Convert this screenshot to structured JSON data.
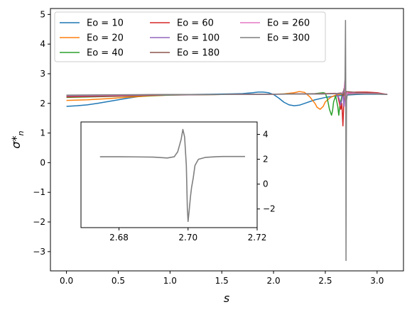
{
  "chart_data": {
    "type": "line",
    "xlabel": "s",
    "ylabel": "σ*",
    "ylabel_sub": "n",
    "xlim": [
      -0.155,
      3.255
    ],
    "ylim": [
      -3.65,
      5.2
    ],
    "xticks": [
      0.0,
      0.5,
      1.0,
      1.5,
      2.0,
      2.5,
      3.0
    ],
    "xtick_labels": [
      "0.0",
      "0.5",
      "1.0",
      "1.5",
      "2.0",
      "2.5",
      "3.0"
    ],
    "yticks": [
      -3,
      -2,
      -1,
      0,
      1,
      2,
      3,
      4,
      5
    ],
    "ytick_labels": [
      "−3",
      "−2",
      "−1",
      "0",
      "1",
      "2",
      "3",
      "4",
      "5"
    ],
    "grid": false,
    "legend": {
      "placement": "top-left",
      "columns": 3,
      "entries": [
        "Eo =  10",
        "Eo =  20",
        "Eo =  40",
        "Eo =  60",
        "Eo =  100",
        "Eo =  180",
        "Eo =  260",
        "Eo =  300"
      ]
    },
    "series": [
      {
        "name": "Eo =  10",
        "color": "#1f77b4",
        "x": [
          0.0,
          0.1,
          0.2,
          0.3,
          0.4,
          0.5,
          0.6,
          0.7,
          0.8,
          0.9,
          1.0,
          1.2,
          1.4,
          1.6,
          1.7,
          1.8,
          1.85,
          1.9,
          1.95,
          2.0,
          2.05,
          2.1,
          2.15,
          2.2,
          2.25,
          2.3,
          2.4,
          2.5,
          2.6,
          2.7,
          2.8,
          2.9,
          3.0,
          3.1
        ],
        "y": [
          1.9,
          1.92,
          1.95,
          2.0,
          2.06,
          2.12,
          2.18,
          2.23,
          2.26,
          2.28,
          2.29,
          2.3,
          2.31,
          2.32,
          2.33,
          2.36,
          2.38,
          2.38,
          2.36,
          2.3,
          2.18,
          2.04,
          1.95,
          1.92,
          1.94,
          2.0,
          2.12,
          2.2,
          2.25,
          2.28,
          2.3,
          2.31,
          2.31,
          2.3
        ]
      },
      {
        "name": "Eo =  20",
        "color": "#ff7f0e",
        "x": [
          0.0,
          0.2,
          0.4,
          0.6,
          0.8,
          1.0,
          1.5,
          2.0,
          2.1,
          2.2,
          2.25,
          2.3,
          2.35,
          2.4,
          2.42,
          2.45,
          2.48,
          2.5,
          2.55,
          2.6,
          2.7,
          2.8,
          2.9,
          3.0,
          3.1
        ],
        "y": [
          2.1,
          2.12,
          2.16,
          2.21,
          2.25,
          2.28,
          2.3,
          2.31,
          2.32,
          2.36,
          2.4,
          2.37,
          2.22,
          2.0,
          1.87,
          1.8,
          1.9,
          2.05,
          2.2,
          2.28,
          2.33,
          2.35,
          2.34,
          2.32,
          2.3
        ]
      },
      {
        "name": "Eo =  40",
        "color": "#2ca02c",
        "x": [
          0.0,
          0.5,
          1.0,
          1.5,
          2.0,
          2.4,
          2.48,
          2.5,
          2.52,
          2.54,
          2.56,
          2.57,
          2.58,
          2.6,
          2.62,
          2.63,
          2.64,
          2.66,
          2.7,
          2.8,
          2.9,
          3.0,
          3.1
        ],
        "y": [
          2.2,
          2.24,
          2.28,
          2.3,
          2.31,
          2.33,
          2.36,
          2.34,
          2.15,
          1.8,
          1.6,
          1.75,
          2.05,
          2.25,
          1.9,
          1.6,
          1.9,
          2.25,
          2.32,
          2.36,
          2.35,
          2.33,
          2.3
        ]
      },
      {
        "name": "Eo =  60",
        "color": "#d62728",
        "x": [
          0.0,
          0.5,
          1.0,
          1.5,
          2.0,
          2.5,
          2.6,
          2.62,
          2.64,
          2.65,
          2.66,
          2.67,
          2.68,
          2.7,
          2.8,
          2.9,
          3.0,
          3.1
        ],
        "y": [
          2.22,
          2.25,
          2.29,
          2.3,
          2.31,
          2.33,
          2.34,
          2.25,
          1.95,
          1.8,
          2.0,
          1.24,
          2.1,
          2.35,
          2.38,
          2.38,
          2.36,
          2.3
        ]
      },
      {
        "name": "Eo =  100",
        "color": "#9467bd",
        "x": [
          0.0,
          0.5,
          1.0,
          1.5,
          2.0,
          2.5,
          2.6,
          2.63,
          2.65,
          2.66,
          2.67,
          2.68,
          2.69,
          2.7,
          2.8,
          3.0,
          3.1
        ],
        "y": [
          2.25,
          2.27,
          2.29,
          2.3,
          2.31,
          2.32,
          2.33,
          2.2,
          1.95,
          2.1,
          2.4,
          1.9,
          2.45,
          2.32,
          2.36,
          2.34,
          2.3
        ]
      },
      {
        "name": "Eo =  180",
        "color": "#8c564b",
        "x": [
          0.0,
          0.5,
          1.0,
          1.5,
          2.0,
          2.5,
          2.6,
          2.65,
          2.67,
          2.68,
          2.69,
          2.7,
          2.8,
          3.0,
          3.1
        ],
        "y": [
          2.26,
          2.28,
          2.3,
          2.3,
          2.31,
          2.32,
          2.33,
          2.35,
          2.25,
          2.5,
          2.1,
          2.4,
          2.37,
          2.34,
          2.3
        ]
      },
      {
        "name": "Eo =  260",
        "color": "#e377c2",
        "x": [
          0.0,
          0.5,
          1.0,
          1.5,
          2.0,
          2.5,
          2.65,
          2.68,
          2.69,
          2.695,
          2.7,
          2.71,
          2.8,
          3.0,
          3.1
        ],
        "y": [
          2.27,
          2.28,
          2.3,
          2.3,
          2.31,
          2.32,
          2.33,
          2.4,
          2.8,
          1.9,
          2.2,
          2.35,
          2.34,
          2.33,
          2.3
        ]
      },
      {
        "name": "Eo =  300",
        "color": "#7f7f7f",
        "x": [
          0.0,
          0.5,
          1.0,
          1.5,
          2.0,
          2.5,
          2.67,
          2.69,
          2.695,
          2.698,
          2.7,
          2.702,
          2.705,
          2.71,
          2.72,
          2.8,
          3.0,
          3.1
        ],
        "y": [
          2.28,
          2.29,
          2.3,
          2.3,
          2.31,
          2.32,
          2.33,
          2.5,
          4.8,
          2.2,
          -3.3,
          -0.1,
          2.1,
          2.25,
          2.3,
          2.32,
          2.32,
          2.3
        ]
      }
    ],
    "inset": {
      "type": "line",
      "xlim": [
        2.669,
        2.72
      ],
      "ylim": [
        -3.5,
        5.0
      ],
      "xticks": [
        2.68,
        2.7,
        2.72
      ],
      "xtick_labels": [
        "2.68",
        "2.70",
        "2.72"
      ],
      "yticks": [
        -2,
        0,
        2,
        4
      ],
      "ytick_labels": [
        "−2",
        "0",
        "2",
        "4"
      ],
      "y_axis_side": "right",
      "series": [
        {
          "color": "#7f7f7f",
          "x": [
            2.6745,
            2.68,
            2.685,
            2.69,
            2.694,
            2.696,
            2.697,
            2.698,
            2.6985,
            2.699,
            2.6995,
            2.6998,
            2.7,
            2.7003,
            2.7007,
            2.701,
            2.7015,
            2.702,
            2.703,
            2.705,
            2.708,
            2.71,
            2.7165
          ],
          "y": [
            2.2,
            2.2,
            2.19,
            2.17,
            2.1,
            2.2,
            2.6,
            3.6,
            4.4,
            3.8,
            1.5,
            -2.0,
            -3.0,
            -2.2,
            -1.0,
            -0.3,
            0.5,
            1.5,
            2.0,
            2.15,
            2.2,
            2.22,
            2.22
          ]
        }
      ]
    }
  }
}
